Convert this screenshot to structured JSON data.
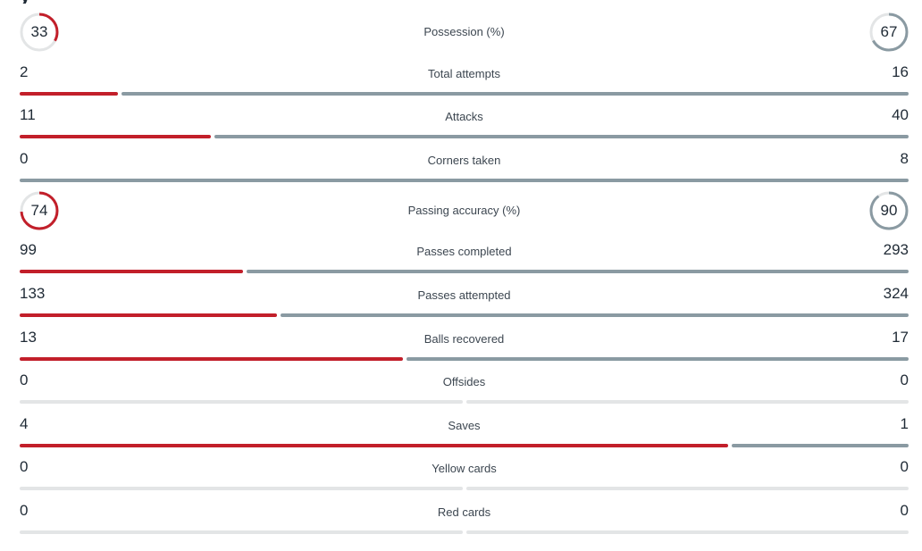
{
  "colors": {
    "home": "#c21f2a",
    "away": "#8a9aa2",
    "empty": "#e3e5e6",
    "text": "#1f2a35"
  },
  "heading_fragment": "y",
  "stats": [
    {
      "key": "possession",
      "label": "Possession (%)",
      "home": 33,
      "away": 67,
      "display": "circle"
    },
    {
      "key": "total-attempts",
      "label": "Total attempts",
      "home": 2,
      "away": 16,
      "display": "bar"
    },
    {
      "key": "attacks",
      "label": "Attacks",
      "home": 11,
      "away": 40,
      "display": "bar"
    },
    {
      "key": "corners-taken",
      "label": "Corners taken",
      "home": 0,
      "away": 8,
      "display": "bar"
    },
    {
      "key": "passing-accuracy",
      "label": "Passing accuracy (%)",
      "home": 74,
      "away": 90,
      "display": "circle"
    },
    {
      "key": "passes-completed",
      "label": "Passes completed",
      "home": 99,
      "away": 293,
      "display": "bar"
    },
    {
      "key": "passes-attempted",
      "label": "Passes attempted",
      "home": 133,
      "away": 324,
      "display": "bar"
    },
    {
      "key": "balls-recovered",
      "label": "Balls recovered",
      "home": 13,
      "away": 17,
      "display": "bar"
    },
    {
      "key": "offsides",
      "label": "Offsides",
      "home": 0,
      "away": 0,
      "display": "bar"
    },
    {
      "key": "saves",
      "label": "Saves",
      "home": 4,
      "away": 1,
      "display": "bar"
    },
    {
      "key": "yellow-cards",
      "label": "Yellow cards",
      "home": 0,
      "away": 0,
      "display": "bar"
    },
    {
      "key": "red-cards",
      "label": "Red cards",
      "home": 0,
      "away": 0,
      "display": "bar"
    }
  ]
}
